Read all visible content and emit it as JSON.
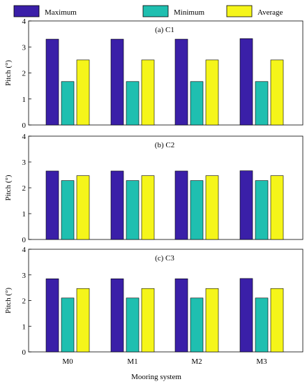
{
  "legend": [
    {
      "name": "Maximum",
      "color": "#3a1fa8"
    },
    {
      "name": "Minimum",
      "color": "#1fbfb0"
    },
    {
      "name": "Average",
      "color": "#f5f51a"
    }
  ],
  "xlabel": "Mooring system",
  "ylabel": "Pitch (°)",
  "chart_data": [
    {
      "type": "bar",
      "title": "(a) C1",
      "categories": [
        "M0",
        "M1",
        "M2",
        "M3"
      ],
      "series": [
        {
          "name": "Maximum",
          "values": [
            3.3,
            3.3,
            3.3,
            3.32
          ]
        },
        {
          "name": "Minimum",
          "values": [
            1.67,
            1.67,
            1.67,
            1.67
          ]
        },
        {
          "name": "Average",
          "values": [
            2.5,
            2.5,
            2.5,
            2.5
          ]
        }
      ],
      "ylabel": "Pitch (°)",
      "ylim": [
        0,
        4
      ],
      "yticks": [
        0,
        1,
        2,
        3,
        4
      ],
      "grid": false
    },
    {
      "type": "bar",
      "title": "(b) C2",
      "categories": [
        "M0",
        "M1",
        "M2",
        "M3"
      ],
      "series": [
        {
          "name": "Maximum",
          "values": [
            2.65,
            2.65,
            2.65,
            2.66
          ]
        },
        {
          "name": "Minimum",
          "values": [
            2.28,
            2.28,
            2.28,
            2.28
          ]
        },
        {
          "name": "Average",
          "values": [
            2.47,
            2.47,
            2.47,
            2.47
          ]
        }
      ],
      "ylabel": "Pitch (°)",
      "ylim": [
        0,
        4
      ],
      "yticks": [
        0,
        1,
        2,
        3,
        4
      ],
      "grid": false
    },
    {
      "type": "bar",
      "title": "(c) C3",
      "categories": [
        "M0",
        "M1",
        "M2",
        "M3"
      ],
      "series": [
        {
          "name": "Maximum",
          "values": [
            2.85,
            2.85,
            2.85,
            2.86
          ]
        },
        {
          "name": "Minimum",
          "values": [
            2.1,
            2.1,
            2.1,
            2.1
          ]
        },
        {
          "name": "Average",
          "values": [
            2.47,
            2.47,
            2.47,
            2.47
          ]
        }
      ],
      "xlabel": "Mooring system",
      "ylabel": "Pitch (°)",
      "ylim": [
        0,
        4
      ],
      "yticks": [
        0,
        1,
        2,
        3,
        4
      ],
      "grid": false
    }
  ]
}
